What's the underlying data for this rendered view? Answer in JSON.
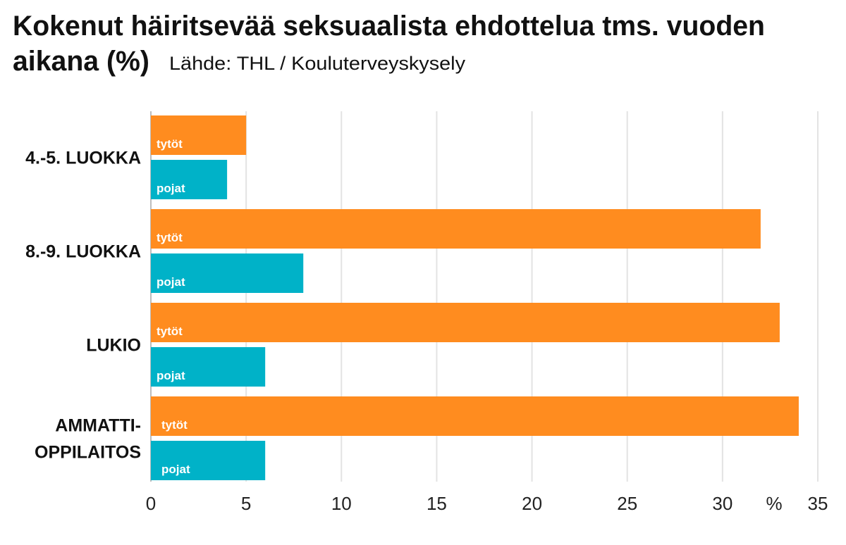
{
  "chart_data": {
    "type": "bar",
    "orientation": "horizontal",
    "title_line1": "Kokenut häiritsevää seksuaalista ehdottelua tms. vuoden",
    "title_line2": "aikana (%)",
    "source": "Lähde: THL / Kouluterveyskysely",
    "categories": [
      {
        "lines": [
          "4.-5. LUOKKA"
        ]
      },
      {
        "lines": [
          "8.-9. LUOKKA"
        ]
      },
      {
        "lines": [
          "LUKIO"
        ]
      },
      {
        "lines": [
          "AMMATTI-",
          "OPPILAITOS"
        ]
      }
    ],
    "series": [
      {
        "name": "tytöt",
        "color": "#ff8c1f",
        "values": [
          5,
          32,
          33,
          34
        ]
      },
      {
        "name": "pojat",
        "color": "#00b2c8",
        "values": [
          4,
          8,
          6,
          6
        ]
      }
    ],
    "xlim": [
      0,
      35
    ],
    "xticks": [
      "0",
      "5",
      "10",
      "15",
      "20",
      "25",
      "30",
      "35"
    ],
    "unit_label": "%",
    "grid": true,
    "legend": "none (series names shown inside bars)"
  }
}
